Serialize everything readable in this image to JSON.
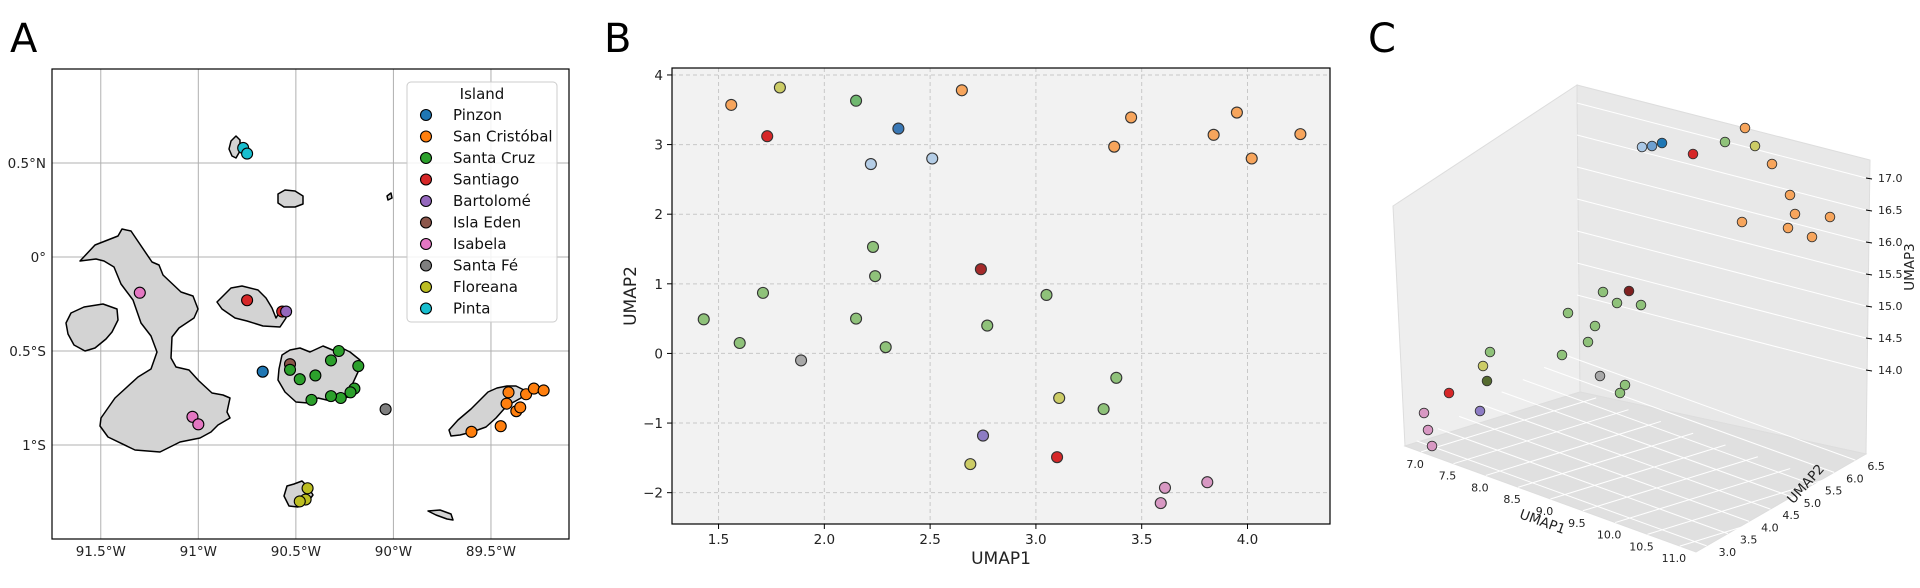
{
  "panels": {
    "a": "A",
    "b": "B",
    "c": "C"
  },
  "colors": {
    "Pinzon": "#1f77b4",
    "San Cristóbal": "#ff7f0e",
    "Santa Cruz": "#2ca02c",
    "Santiago": "#d62728",
    "Bartolomé": "#9467bd",
    "Isla Eden": "#8c564b",
    "Isabela": "#e377c2",
    "Santa Fé": "#7f7f7f",
    "Floreana": "#bcbd22",
    "Pinta": "#17becf",
    "land": "#d3d3d3",
    "panel_bg": "#f2f2f2"
  },
  "chart_data": [
    {
      "type": "scatter",
      "panel": "A",
      "xlabel": "",
      "ylabel": "",
      "xlim": [
        -91.75,
        -89.1
      ],
      "ylim": [
        -1.5,
        1.0
      ],
      "x_ticks": [
        -91.5,
        -91.0,
        -90.5,
        -90.0,
        -89.5
      ],
      "x_tick_labels": [
        "91.5°W",
        "91°W",
        "90.5°W",
        "90°W",
        "89.5°W"
      ],
      "y_ticks": [
        0.5,
        0.0,
        -0.5,
        -1.0
      ],
      "y_tick_labels": [
        "0.5°N",
        "0°",
        "0.5°S",
        "1°S"
      ],
      "grid": true,
      "legend_title": "Island",
      "legend": [
        "Pinzon",
        "San Cristóbal",
        "Santa Cruz",
        "Santiago",
        "Bartolomé",
        "Isla Eden",
        "Isabela",
        "Santa Fé",
        "Floreana",
        "Pinta"
      ],
      "legend_position": "top-right",
      "points": [
        {
          "island": "Pinta",
          "x": -90.77,
          "y": 0.58
        },
        {
          "island": "Pinta",
          "x": -90.75,
          "y": 0.55
        },
        {
          "island": "Isabela",
          "x": -91.3,
          "y": -0.19
        },
        {
          "island": "Isabela",
          "x": -91.03,
          "y": -0.85
        },
        {
          "island": "Isabela",
          "x": -91.0,
          "y": -0.89
        },
        {
          "island": "Santiago",
          "x": -90.75,
          "y": -0.23
        },
        {
          "island": "Santiago",
          "x": -90.57,
          "y": -0.29
        },
        {
          "island": "Bartolomé",
          "x": -90.55,
          "y": -0.29
        },
        {
          "island": "Pinzon",
          "x": -90.67,
          "y": -0.61
        },
        {
          "island": "Isla Eden",
          "x": -90.53,
          "y": -0.57
        },
        {
          "island": "Santa Cruz",
          "x": -90.53,
          "y": -0.6
        },
        {
          "island": "Santa Cruz",
          "x": -90.48,
          "y": -0.65
        },
        {
          "island": "Santa Cruz",
          "x": -90.4,
          "y": -0.63
        },
        {
          "island": "Santa Cruz",
          "x": -90.32,
          "y": -0.55
        },
        {
          "island": "Santa Cruz",
          "x": -90.28,
          "y": -0.5
        },
        {
          "island": "Santa Cruz",
          "x": -90.18,
          "y": -0.58
        },
        {
          "island": "Santa Cruz",
          "x": -90.2,
          "y": -0.7
        },
        {
          "island": "Santa Cruz",
          "x": -90.22,
          "y": -0.72
        },
        {
          "island": "Santa Cruz",
          "x": -90.27,
          "y": -0.75
        },
        {
          "island": "Santa Cruz",
          "x": -90.32,
          "y": -0.74
        },
        {
          "island": "Santa Cruz",
          "x": -90.42,
          "y": -0.76
        },
        {
          "island": "Santa Fé",
          "x": -90.04,
          "y": -0.81
        },
        {
          "island": "Floreana",
          "x": -90.44,
          "y": -1.23
        },
        {
          "island": "Floreana",
          "x": -90.45,
          "y": -1.29
        },
        {
          "island": "Floreana",
          "x": -90.48,
          "y": -1.3
        },
        {
          "island": "San Cristóbal",
          "x": -89.6,
          "y": -0.93
        },
        {
          "island": "San Cristóbal",
          "x": -89.45,
          "y": -0.9
        },
        {
          "island": "San Cristóbal",
          "x": -89.42,
          "y": -0.78
        },
        {
          "island": "San Cristóbal",
          "x": -89.37,
          "y": -0.82
        },
        {
          "island": "San Cristóbal",
          "x": -89.35,
          "y": -0.8
        },
        {
          "island": "San Cristóbal",
          "x": -89.32,
          "y": -0.73
        },
        {
          "island": "San Cristóbal",
          "x": -89.28,
          "y": -0.7
        },
        {
          "island": "San Cristóbal",
          "x": -89.23,
          "y": -0.71
        },
        {
          "island": "San Cristóbal",
          "x": -89.41,
          "y": -0.72
        }
      ]
    },
    {
      "type": "scatter",
      "panel": "B",
      "xlabel": "UMAP1",
      "ylabel": "UMAP2",
      "xlim": [
        1.28,
        4.39
      ],
      "ylim": [
        -2.45,
        4.1
      ],
      "x_ticks": [
        1.5,
        2.0,
        2.5,
        3.0,
        3.5,
        4.0
      ],
      "y_ticks": [
        -2,
        -1,
        0,
        1,
        2,
        3,
        4
      ],
      "grid": true,
      "points": [
        {
          "x": 1.56,
          "y": 3.57,
          "c": "#f7a55c"
        },
        {
          "x": 1.79,
          "y": 3.82,
          "c": "#cccc66"
        },
        {
          "x": 1.73,
          "y": 3.12,
          "c": "#d62728"
        },
        {
          "x": 2.15,
          "y": 3.63,
          "c": "#6fb86f"
        },
        {
          "x": 2.65,
          "y": 3.78,
          "c": "#f7a55c"
        },
        {
          "x": 2.35,
          "y": 3.23,
          "c": "#3a78b5"
        },
        {
          "x": 2.22,
          "y": 2.72,
          "c": "#b4cde6"
        },
        {
          "x": 2.51,
          "y": 2.8,
          "c": "#b4cde6"
        },
        {
          "x": 3.45,
          "y": 3.39,
          "c": "#f7a55c"
        },
        {
          "x": 3.37,
          "y": 2.97,
          "c": "#f7a55c"
        },
        {
          "x": 3.84,
          "y": 3.14,
          "c": "#f7a55c"
        },
        {
          "x": 3.95,
          "y": 3.46,
          "c": "#f7a55c"
        },
        {
          "x": 4.02,
          "y": 2.8,
          "c": "#f7a55c"
        },
        {
          "x": 4.25,
          "y": 3.15,
          "c": "#f7a55c"
        },
        {
          "x": 2.23,
          "y": 1.53,
          "c": "#8fc27a"
        },
        {
          "x": 2.24,
          "y": 1.11,
          "c": "#8fc27a"
        },
        {
          "x": 2.74,
          "y": 1.21,
          "c": "#a52a2a"
        },
        {
          "x": 1.71,
          "y": 0.87,
          "c": "#8fc27a"
        },
        {
          "x": 3.05,
          "y": 0.84,
          "c": "#8fc27a"
        },
        {
          "x": 1.43,
          "y": 0.49,
          "c": "#8fc27a"
        },
        {
          "x": 2.15,
          "y": 0.5,
          "c": "#8fc27a"
        },
        {
          "x": 2.77,
          "y": 0.4,
          "c": "#8fc27a"
        },
        {
          "x": 1.6,
          "y": 0.15,
          "c": "#8fc27a"
        },
        {
          "x": 2.29,
          "y": 0.09,
          "c": "#8fc27a"
        },
        {
          "x": 1.89,
          "y": -0.1,
          "c": "#a8a8a8"
        },
        {
          "x": 3.38,
          "y": -0.35,
          "c": "#8fc27a"
        },
        {
          "x": 3.11,
          "y": -0.64,
          "c": "#cccc66"
        },
        {
          "x": 3.32,
          "y": -0.8,
          "c": "#8fc27a"
        },
        {
          "x": 2.75,
          "y": -1.18,
          "c": "#8d7cc4"
        },
        {
          "x": 2.69,
          "y": -1.59,
          "c": "#cccc66"
        },
        {
          "x": 3.1,
          "y": -1.49,
          "c": "#d62728"
        },
        {
          "x": 3.61,
          "y": -1.93,
          "c": "#d898c3"
        },
        {
          "x": 3.81,
          "y": -1.85,
          "c": "#d898c3"
        },
        {
          "x": 3.59,
          "y": -2.15,
          "c": "#d898c3"
        }
      ]
    },
    {
      "type": "scatter",
      "panel": "C",
      "xlabel": "UMAP1",
      "ylabel": "UMAP2",
      "zlabel": "UMAP3",
      "x_ticks": [
        7.0,
        7.5,
        8.0,
        8.5,
        9.0,
        9.5,
        10.0,
        10.5,
        11.0
      ],
      "y_ticks": [
        3.0,
        3.5,
        4.0,
        4.5,
        5.0,
        5.5,
        6.0,
        6.5
      ],
      "y_tick_labels": [
        "3.0",
        "3.5",
        "4.0",
        "4.5",
        "5.0",
        "5.5",
        "6.0",
        "6.5"
      ],
      "z_ticks": [
        14.0,
        14.5,
        15.0,
        15.5,
        16.0,
        16.5,
        17.0
      ],
      "grid": true,
      "points": []
    }
  ]
}
